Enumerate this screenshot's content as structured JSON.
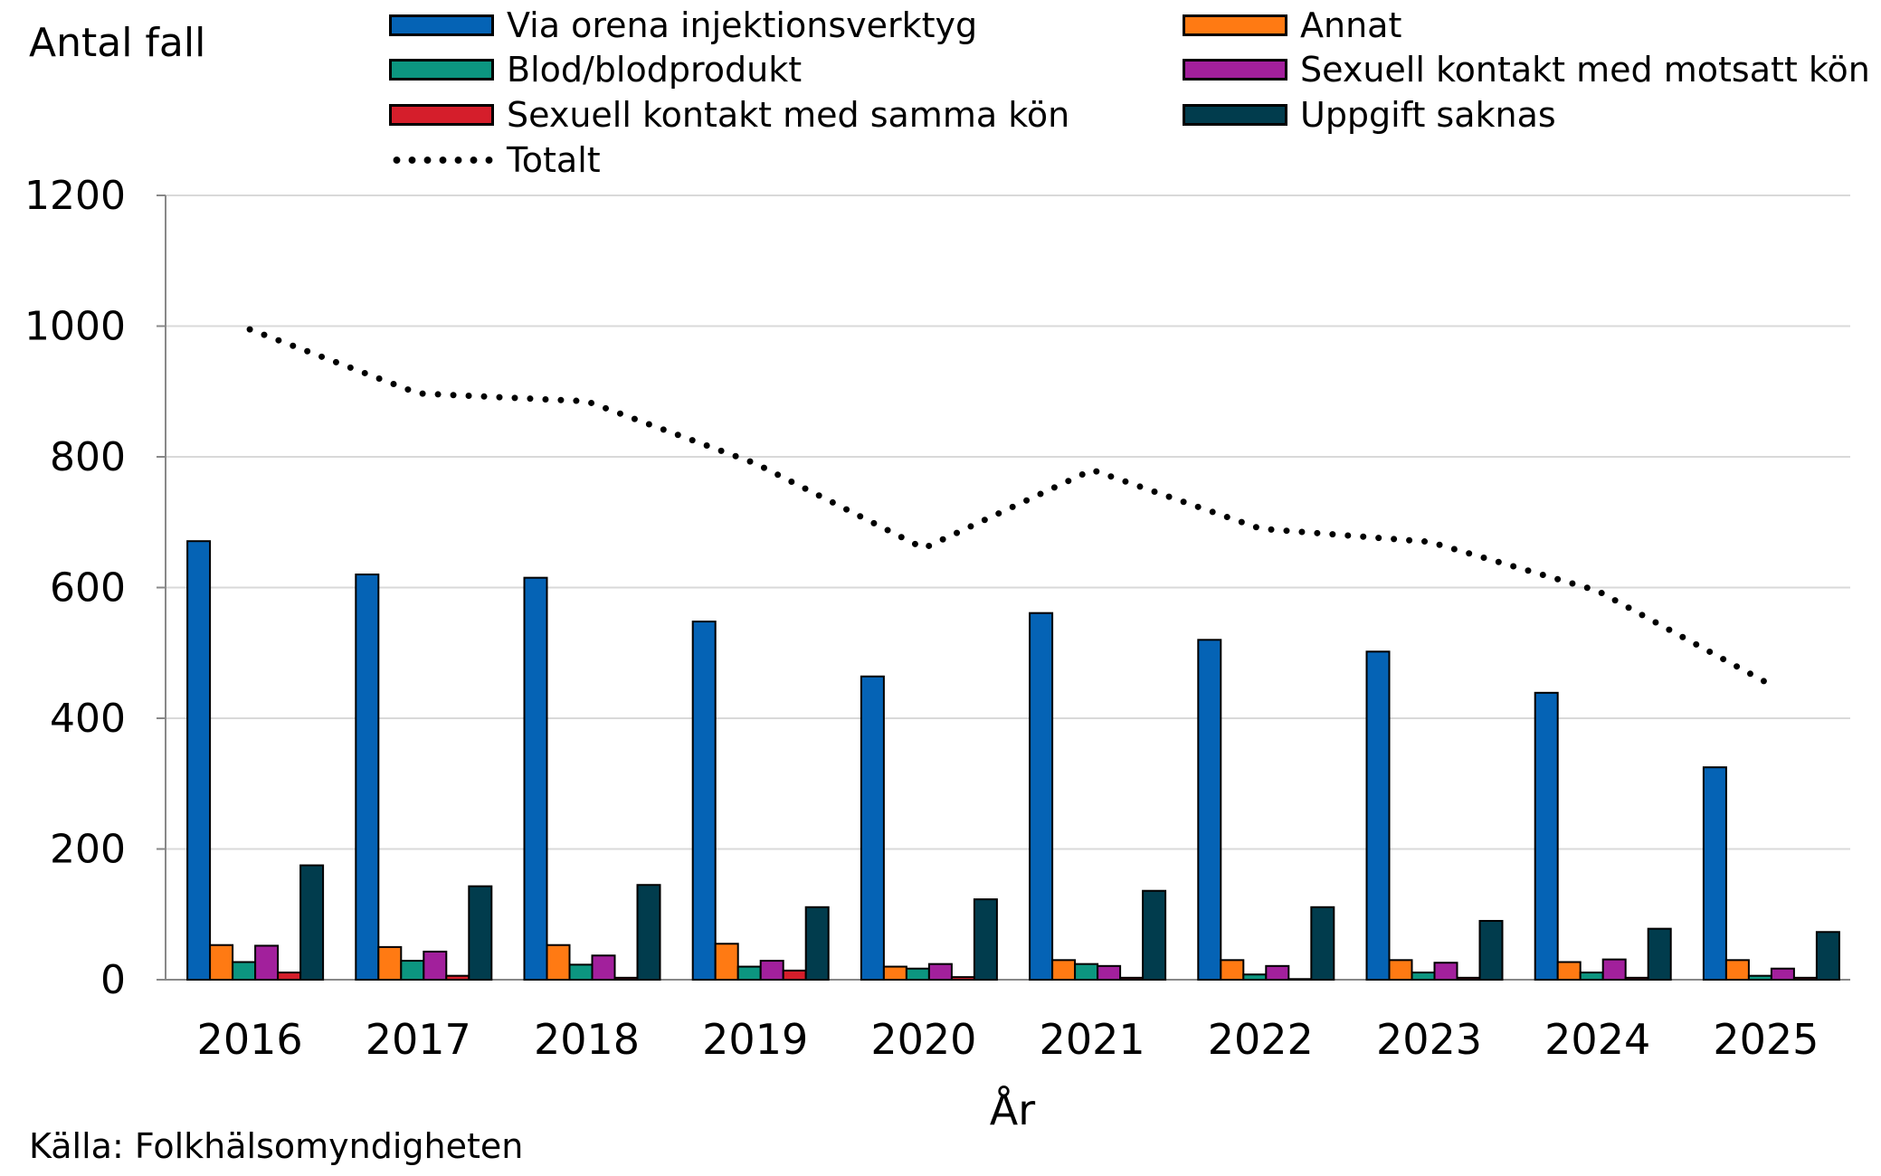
{
  "y_axis_title": "Antal fall",
  "source": "Källa: Folkhälsomyndigheten",
  "chart_data": {
    "type": "bar",
    "xlabel": "År",
    "ylabel": "Antal fall",
    "ylim": [
      0,
      1200
    ],
    "yticks": [
      0,
      200,
      400,
      600,
      800,
      1000,
      1200
    ],
    "grid": true,
    "legend_position": "top",
    "categories": [
      "2016",
      "2017",
      "2018",
      "2019",
      "2020",
      "2021",
      "2022",
      "2023",
      "2024",
      "2025"
    ],
    "series": [
      {
        "name": "Via orena injektionsverktyg",
        "color": "#0563b5",
        "values": [
          671,
          620,
          615,
          548,
          464,
          561,
          520,
          502,
          439,
          325
        ]
      },
      {
        "name": "Annat",
        "color": "#ff7a13",
        "values": [
          53,
          50,
          53,
          55,
          20,
          30,
          30,
          30,
          27,
          30
        ]
      },
      {
        "name": "Blod/blodprodukt",
        "color": "#0c9680",
        "values": [
          27,
          29,
          23,
          20,
          17,
          24,
          8,
          11,
          11,
          6
        ]
      },
      {
        "name": "Sexuell kontakt med motsatt kön",
        "color": "#a2209c",
        "values": [
          52,
          43,
          37,
          29,
          24,
          21,
          21,
          26,
          31,
          17
        ]
      },
      {
        "name": "Sexuell kontakt med samma kön",
        "color": "#d51e2b",
        "values": [
          11,
          6,
          3,
          14,
          4,
          3,
          1,
          3,
          3,
          3
        ]
      },
      {
        "name": "Uppgift saknas",
        "color": "#013c4d",
        "values": [
          175,
          143,
          145,
          111,
          123,
          136,
          111,
          90,
          78,
          73
        ]
      },
      {
        "name": "Totalt",
        "color": "#000000",
        "type": "line",
        "style": "dotted",
        "values": [
          995,
          897,
          885,
          790,
          660,
          780,
          690,
          670,
          595,
          455
        ]
      }
    ]
  }
}
